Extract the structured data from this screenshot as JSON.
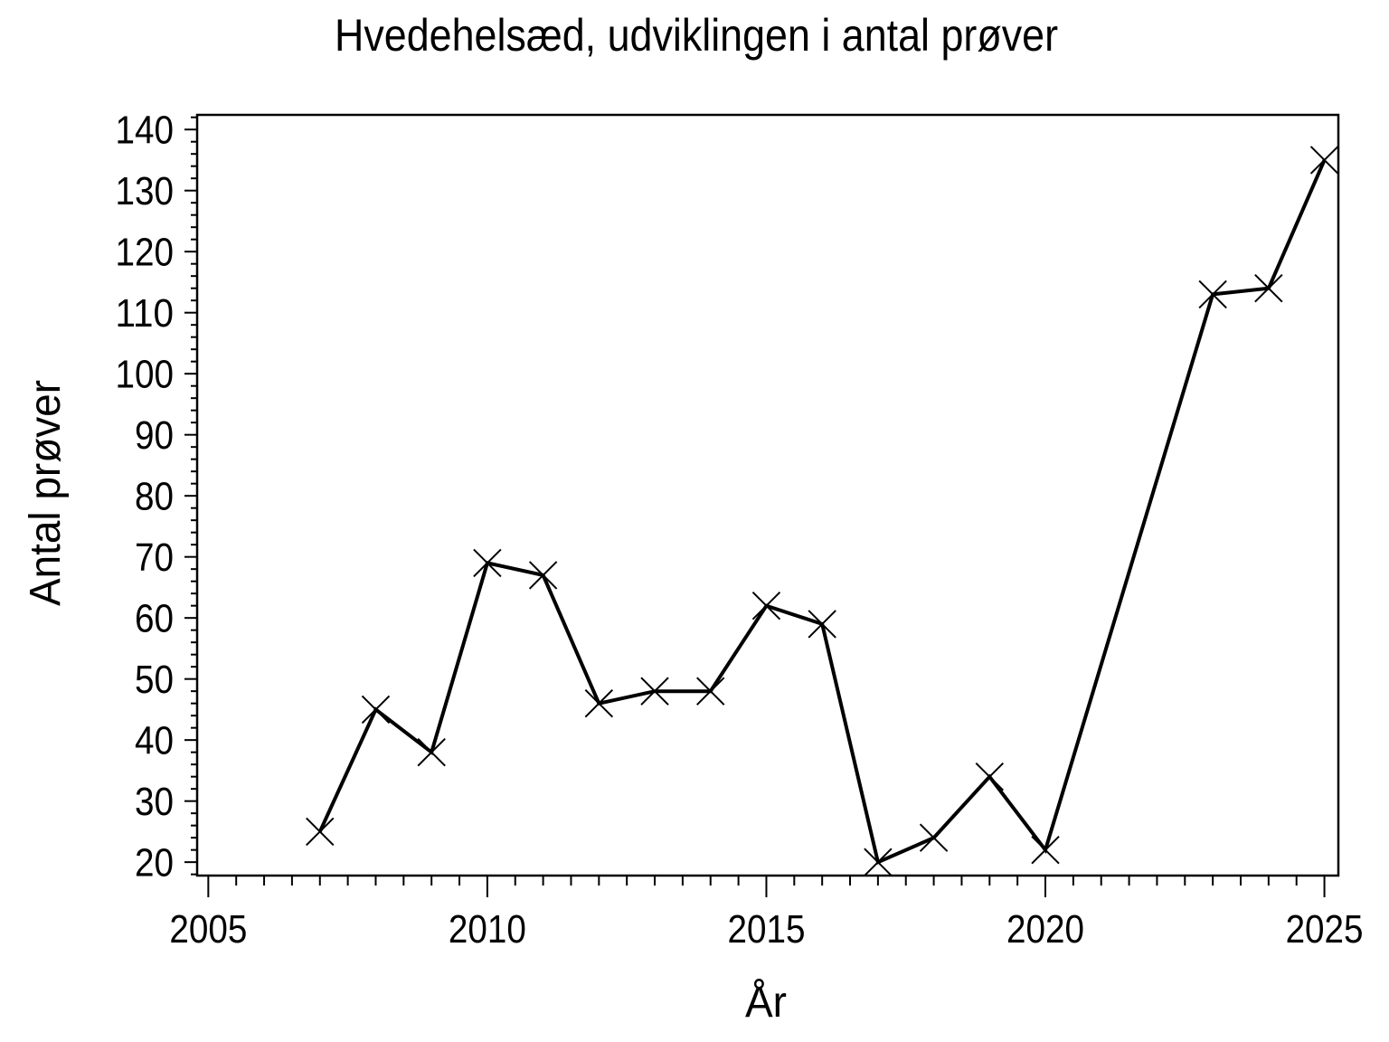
{
  "page": {
    "background": "#ffffff",
    "foreground": "#000000"
  },
  "chart_data": {
    "type": "line",
    "title": "Hvedehelsæd, udviklingen i antal prøver",
    "xlabel": "År",
    "ylabel": "Antal prøver",
    "grid": false,
    "legend": false,
    "xlim": [
      2004.8,
      2025.25
    ],
    "ylim": [
      17.8,
      142.4
    ],
    "x_ticks": [
      2005,
      2010,
      2015,
      2020,
      2025
    ],
    "y_ticks": [
      20,
      30,
      40,
      50,
      60,
      70,
      80,
      90,
      100,
      110,
      120,
      130,
      140
    ],
    "x_minor_step": 0.5,
    "y_minor_step": 2,
    "series": [
      {
        "name": "Antal prøver",
        "color": "#000000",
        "marker": "x-cross-marker",
        "points": [
          {
            "x": 2007,
            "y": 25
          },
          {
            "x": 2008,
            "y": 45
          },
          {
            "x": 2009,
            "y": 38
          },
          {
            "x": 2010,
            "y": 69
          },
          {
            "x": 2011,
            "y": 67
          },
          {
            "x": 2012,
            "y": 46
          },
          {
            "x": 2013,
            "y": 48
          },
          {
            "x": 2014,
            "y": 48
          },
          {
            "x": 2015,
            "y": 62
          },
          {
            "x": 2016,
            "y": 59
          },
          {
            "x": 2017,
            "y": 20
          },
          {
            "x": 2018,
            "y": 24
          },
          {
            "x": 2019,
            "y": 34
          },
          {
            "x": 2020,
            "y": 22
          },
          {
            "x": 2023,
            "y": 113
          },
          {
            "x": 2024,
            "y": 114
          },
          {
            "x": 2025,
            "y": 135
          }
        ]
      }
    ]
  }
}
